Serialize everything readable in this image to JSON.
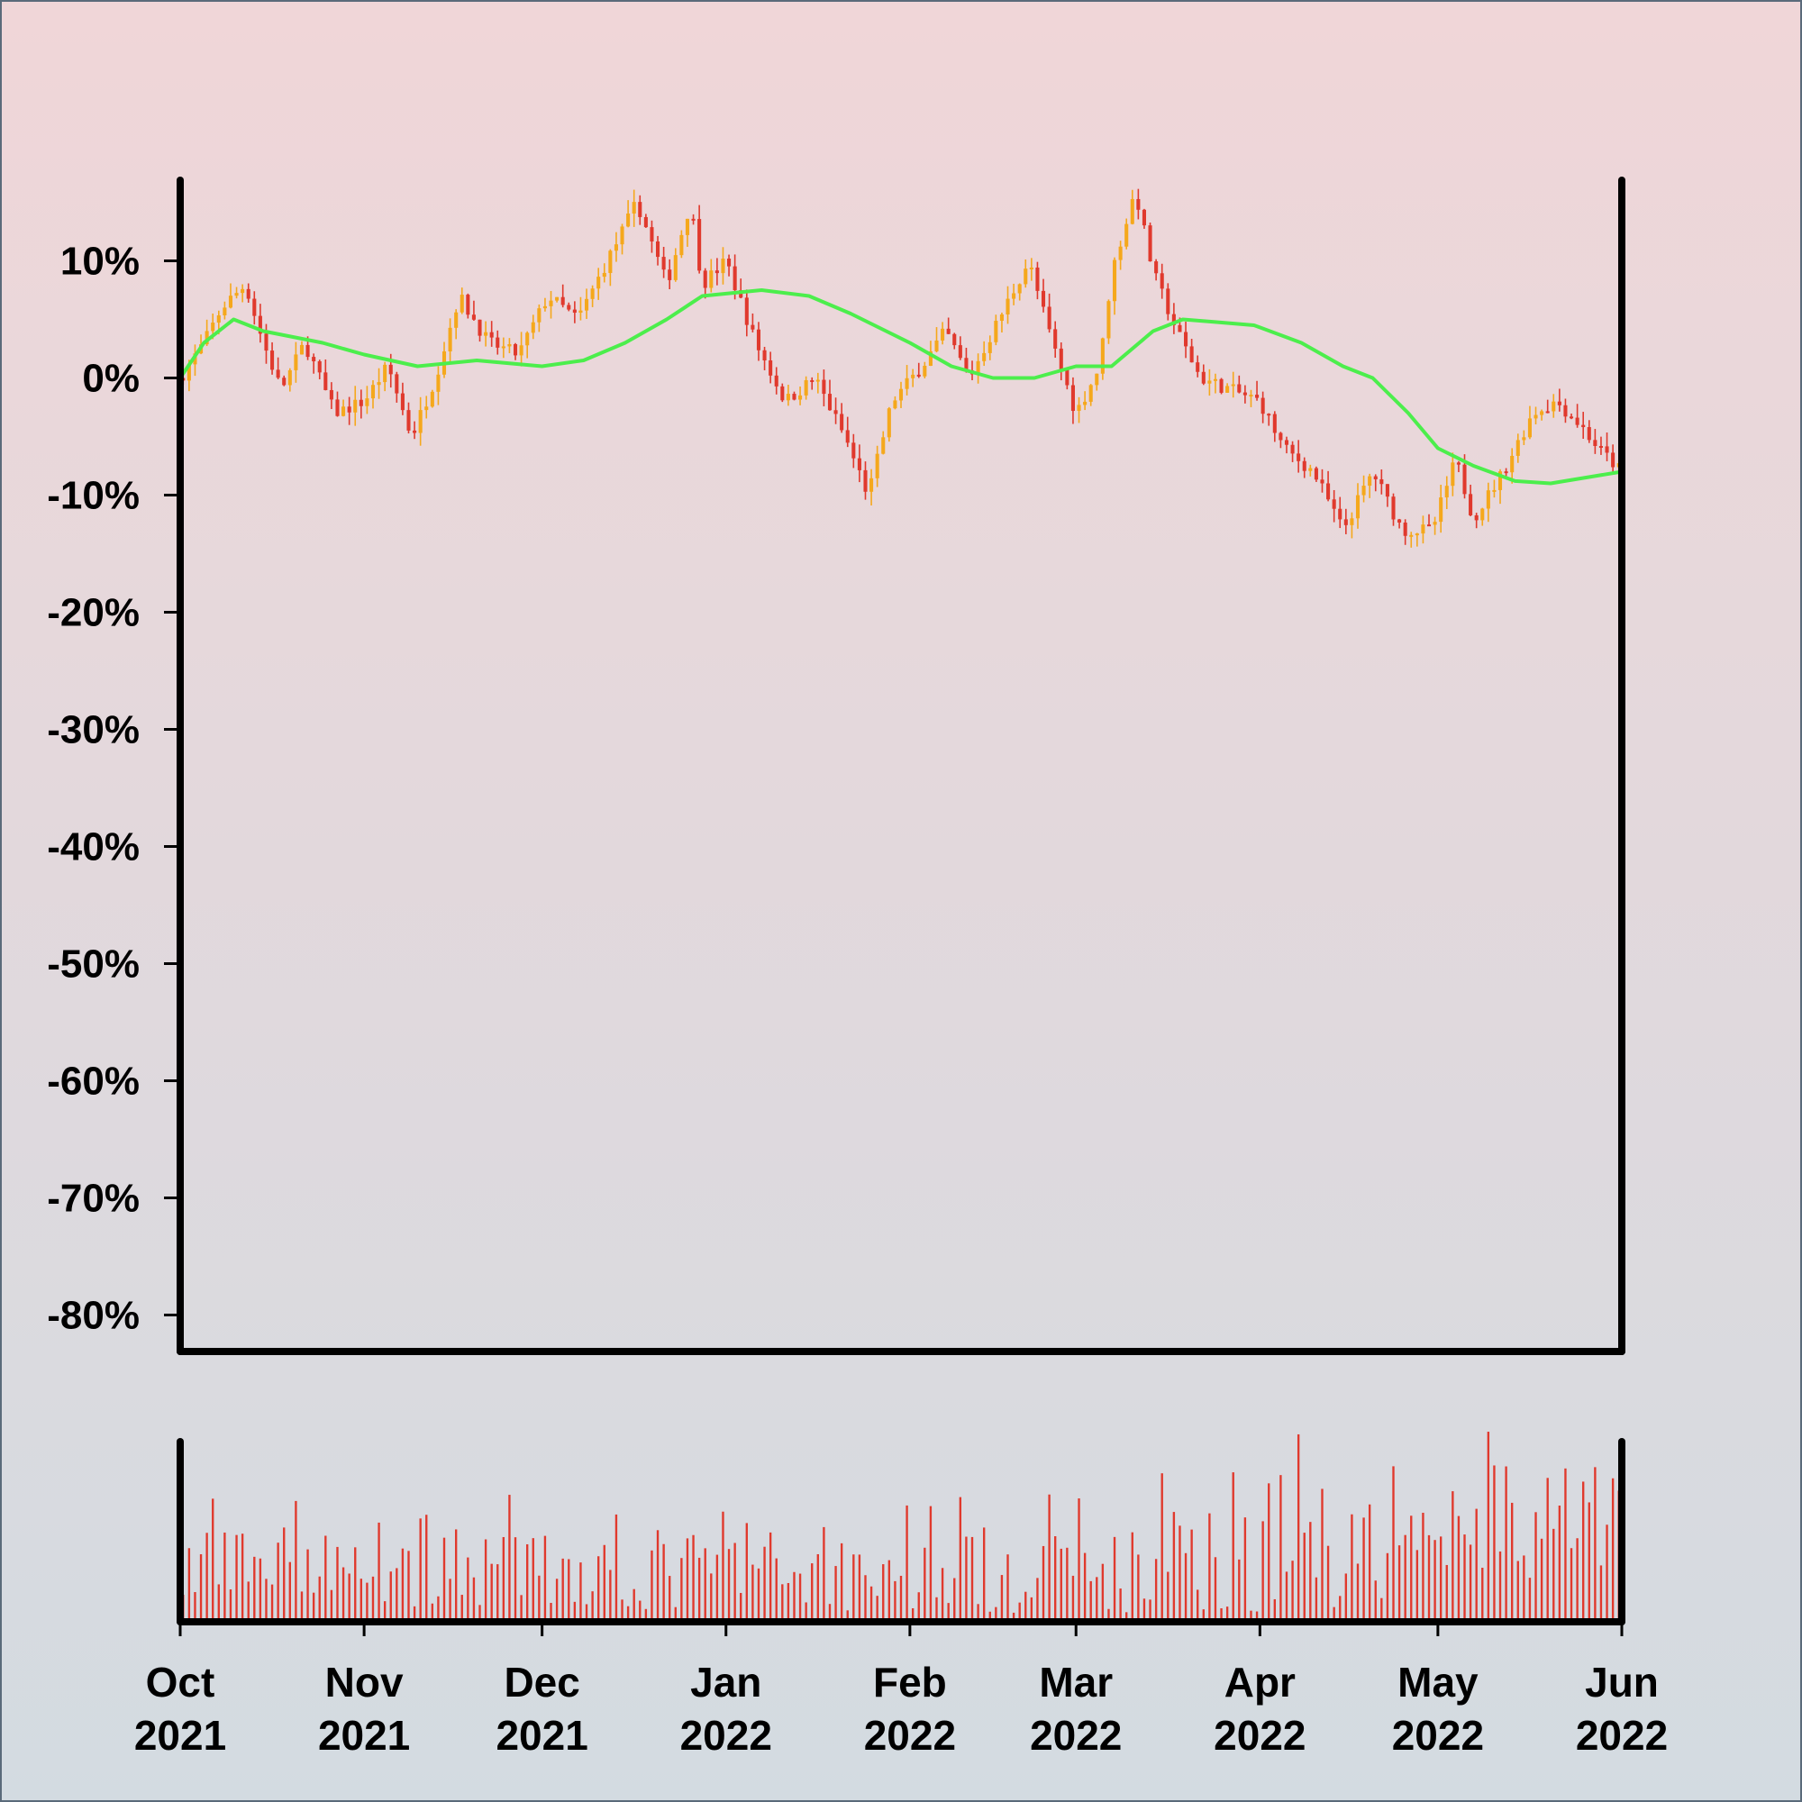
{
  "chart_data": {
    "type": "candlestick",
    "title": "",
    "xlabel": "",
    "ylabel": "",
    "x_range": [
      "2021-10-01",
      "2022-06-01"
    ],
    "ylim": [
      -0.82,
      0.17
    ],
    "y_ticks": [
      0.1,
      0.0,
      -0.1,
      -0.2,
      -0.3,
      -0.4,
      -0.5,
      -0.6,
      -0.7,
      -0.8
    ],
    "y_tick_labels": [
      "10%",
      "0%",
      "-10%",
      "-20%",
      "-30%",
      "-40%",
      "-50%",
      "-60%",
      "-70%",
      "-80%"
    ],
    "x_ticks": [
      "2021-10-01",
      "2021-11-01",
      "2021-12-01",
      "2022-01-01",
      "2022-02-01",
      "2022-03-01",
      "2022-04-01",
      "2022-05-01",
      "2022-06-01"
    ],
    "x_tick_labels": [
      [
        "Oct",
        "2021"
      ],
      [
        "Nov",
        "2021"
      ],
      [
        "Dec",
        "2021"
      ],
      [
        "Jan",
        "2022"
      ],
      [
        "Feb",
        "2022"
      ],
      [
        "Mar",
        "2022"
      ],
      [
        "Apr",
        "2022"
      ],
      [
        "May",
        "2022"
      ],
      [
        "Jun",
        "2022"
      ]
    ],
    "close_anchors": [
      [
        "2021-10-01",
        0.0
      ],
      [
        "2021-10-05",
        0.03
      ],
      [
        "2021-10-08",
        0.06
      ],
      [
        "2021-10-12",
        0.08
      ],
      [
        "2021-10-15",
        0.03
      ],
      [
        "2021-10-18",
        -0.01
      ],
      [
        "2021-10-22",
        0.03
      ],
      [
        "2021-10-27",
        -0.03
      ],
      [
        "2021-11-01",
        -0.02
      ],
      [
        "2021-11-05",
        0.01
      ],
      [
        "2021-11-09",
        -0.05
      ],
      [
        "2021-11-13",
        0.0
      ],
      [
        "2021-11-17",
        0.07
      ],
      [
        "2021-11-22",
        0.03
      ],
      [
        "2021-11-27",
        0.02
      ],
      [
        "2021-12-02",
        0.07
      ],
      [
        "2021-12-07",
        0.05
      ],
      [
        "2021-12-12",
        0.1
      ],
      [
        "2021-12-17",
        0.15
      ],
      [
        "2021-12-22",
        0.08
      ],
      [
        "2021-12-26",
        0.15
      ],
      [
        "2021-12-28",
        0.08
      ],
      [
        "2022-01-01",
        0.1
      ],
      [
        "2022-01-06",
        0.03
      ],
      [
        "2022-01-11",
        -0.02
      ],
      [
        "2022-01-16",
        0.0
      ],
      [
        "2022-01-21",
        -0.05
      ],
      [
        "2022-01-25",
        -0.1
      ],
      [
        "2022-01-29",
        -0.02
      ],
      [
        "2022-02-03",
        0.01
      ],
      [
        "2022-02-07",
        0.04
      ],
      [
        "2022-02-11",
        0.0
      ],
      [
        "2022-02-16",
        0.05
      ],
      [
        "2022-02-21",
        0.1
      ],
      [
        "2022-02-25",
        0.03
      ],
      [
        "2022-03-01",
        -0.03
      ],
      [
        "2022-03-05",
        0.01
      ],
      [
        "2022-03-07",
        0.09
      ],
      [
        "2022-03-11",
        0.16
      ],
      [
        "2022-03-14",
        0.09
      ],
      [
        "2022-03-18",
        0.04
      ],
      [
        "2022-03-22",
        0.0
      ],
      [
        "2022-03-27",
        -0.01
      ],
      [
        "2022-04-01",
        -0.02
      ],
      [
        "2022-04-05",
        -0.06
      ],
      [
        "2022-04-10",
        -0.08
      ],
      [
        "2022-04-15",
        -0.13
      ],
      [
        "2022-04-20",
        -0.08
      ],
      [
        "2022-04-25",
        -0.13
      ],
      [
        "2022-04-30",
        -0.13
      ],
      [
        "2022-05-04",
        -0.07
      ],
      [
        "2022-05-07",
        -0.12
      ],
      [
        "2022-05-12",
        -0.08
      ],
      [
        "2022-05-17",
        -0.03
      ],
      [
        "2022-05-21",
        -0.02
      ],
      [
        "2022-05-25",
        -0.04
      ],
      [
        "2022-05-28",
        -0.06
      ],
      [
        "2022-06-01",
        -0.08
      ]
    ],
    "moving_average": [
      [
        "2021-10-01",
        0.0
      ],
      [
        "2021-10-05",
        0.03
      ],
      [
        "2021-10-10",
        0.05
      ],
      [
        "2021-10-15",
        0.04
      ],
      [
        "2021-10-25",
        0.03
      ],
      [
        "2021-11-01",
        0.02
      ],
      [
        "2021-11-10",
        0.01
      ],
      [
        "2021-11-20",
        0.015
      ],
      [
        "2021-12-01",
        0.01
      ],
      [
        "2021-12-08",
        0.015
      ],
      [
        "2021-12-15",
        0.03
      ],
      [
        "2021-12-22",
        0.05
      ],
      [
        "2021-12-28",
        0.07
      ],
      [
        "2022-01-07",
        0.075
      ],
      [
        "2022-01-15",
        0.07
      ],
      [
        "2022-01-22",
        0.055
      ],
      [
        "2022-02-01",
        0.03
      ],
      [
        "2022-02-08",
        0.01
      ],
      [
        "2022-02-15",
        0.0
      ],
      [
        "2022-02-22",
        0.0
      ],
      [
        "2022-03-01",
        0.01
      ],
      [
        "2022-03-07",
        0.01
      ],
      [
        "2022-03-14",
        0.04
      ],
      [
        "2022-03-19",
        0.05
      ],
      [
        "2022-03-24",
        0.048
      ],
      [
        "2022-03-31",
        0.045
      ],
      [
        "2022-04-08",
        0.03
      ],
      [
        "2022-04-15",
        0.01
      ],
      [
        "2022-04-20",
        0.0
      ],
      [
        "2022-04-26",
        -0.03
      ],
      [
        "2022-05-01",
        -0.06
      ],
      [
        "2022-05-07",
        -0.075
      ],
      [
        "2022-05-14",
        -0.088
      ],
      [
        "2022-05-20",
        -0.09
      ],
      [
        "2022-06-01",
        -0.08
      ]
    ],
    "volume": "relative daily volume bars, higher from mid-March to June"
  },
  "colors": {
    "background_top": "#f0d6d8",
    "background_bottom": "#d3dbe1",
    "candle_up": "#f5a81c",
    "candle_down": "#e0392d",
    "moving_average": "#4cee4c",
    "volume": "#e0392d",
    "axes": "#000000"
  }
}
